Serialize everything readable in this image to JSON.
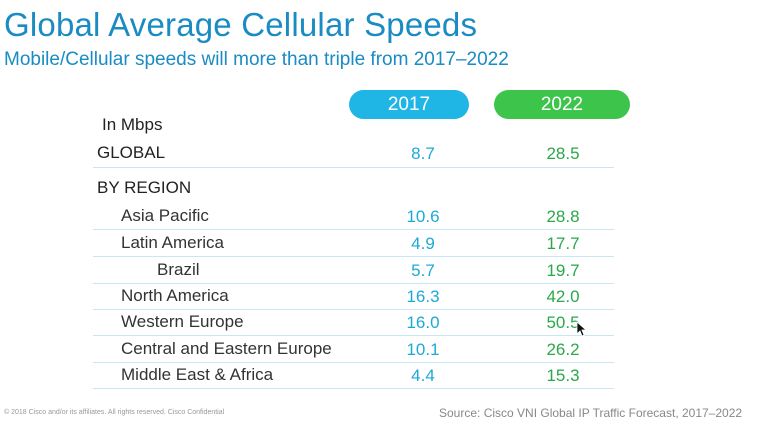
{
  "title": "Global Average Cellular Speeds",
  "subtitle": "Mobile/Cellular speeds will more than triple from 2017–2022",
  "chart_data": {
    "type": "table",
    "unit_label": "In Mbps",
    "columns": [
      "2017",
      "2022"
    ],
    "column_colors": [
      "#1fb6e6",
      "#3cc54a"
    ],
    "global": {
      "label": "GLOBAL",
      "v2017": "8.7",
      "v2022": "28.5"
    },
    "region_header": "BY REGION",
    "rows": [
      {
        "label": "Asia Pacific",
        "v2017": "10.6",
        "v2022": "28.8"
      },
      {
        "label": "Latin America",
        "v2017": "4.9",
        "v2022": "17.7"
      },
      {
        "label": "Brazil",
        "v2017": "5.7",
        "v2022": "19.7"
      },
      {
        "label": "North America",
        "v2017": "16.3",
        "v2022": "42.0"
      },
      {
        "label": "Western Europe",
        "v2017": "16.0",
        "v2022": "50.5"
      },
      {
        "label": "Central and Eastern Europe",
        "v2017": "10.1",
        "v2022": "26.2"
      },
      {
        "label": "Middle East & Africa",
        "v2017": "4.4",
        "v2022": "15.3"
      }
    ]
  },
  "footer": {
    "copyright": "© 2018  Cisco and/or its affiliates. All rights reserved.   Cisco Confidential",
    "source": "Source: Cisco VNI Global IP Traffic Forecast, 2017–2022"
  }
}
